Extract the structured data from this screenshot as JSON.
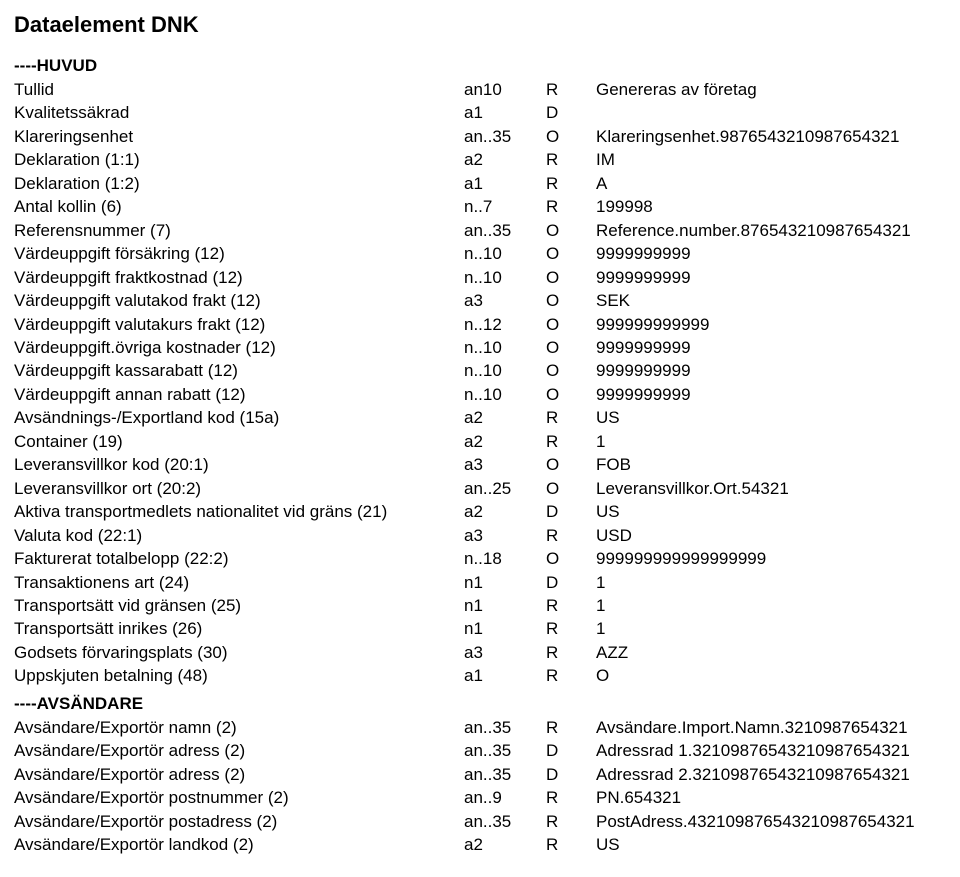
{
  "title": "Dataelement DNK",
  "sections": [
    {
      "heading": "----HUVUD",
      "rows": [
        {
          "label": "Tullid",
          "code": "an10",
          "flag": "R",
          "value": "Genereras av företag"
        },
        {
          "label": "Kvalitetssäkrad",
          "code": "a1",
          "flag": "D",
          "value": ""
        },
        {
          "label": "Klareringsenhet",
          "code": "an..35",
          "flag": "O",
          "value": "Klareringsenhet.9876543210987654321"
        },
        {
          "label": "Deklaration (1:1)",
          "code": "a2",
          "flag": "R",
          "value": "IM"
        },
        {
          "label": "Deklaration (1:2)",
          "code": "a1",
          "flag": "R",
          "value": "A"
        },
        {
          "label": "Antal kollin (6)",
          "code": "n..7",
          "flag": "R",
          "value": "199998"
        },
        {
          "label": "Referensnummer (7)",
          "code": "an..35",
          "flag": "O",
          "value": "Reference.number.876543210987654321"
        },
        {
          "label": "Värdeuppgift försäkring (12)",
          "code": "n..10",
          "flag": "O",
          "value": "9999999999"
        },
        {
          "label": "Värdeuppgift fraktkostnad (12)",
          "code": "n..10",
          "flag": "O",
          "value": "9999999999"
        },
        {
          "label": "Värdeuppgift valutakod frakt (12)",
          "code": "a3",
          "flag": "O",
          "value": "SEK"
        },
        {
          "label": "Värdeuppgift valutakurs frakt (12)",
          "code": "n..12",
          "flag": "O",
          "value": "999999999999"
        },
        {
          "label": "Värdeuppgift.övriga kostnader (12)",
          "code": "n..10",
          "flag": "O",
          "value": "9999999999"
        },
        {
          "label": "Värdeuppgift kassarabatt (12)",
          "code": "n..10",
          "flag": "O",
          "value": "9999999999"
        },
        {
          "label": "Värdeuppgift annan rabatt (12)",
          "code": "n..10",
          "flag": "O",
          "value": "9999999999"
        },
        {
          "label": "Avsändnings-/Exportland kod (15a)",
          "code": "a2",
          "flag": "R",
          "value": "US"
        },
        {
          "label": "Container (19)",
          "code": "a2",
          "flag": "R",
          "value": "1"
        },
        {
          "label": "Leveransvillkor kod (20:1)",
          "code": "a3",
          "flag": "O",
          "value": "FOB"
        },
        {
          "label": "Leveransvillkor ort (20:2)",
          "code": "an..25",
          "flag": "O",
          "value": "Leveransvillkor.Ort.54321"
        },
        {
          "label": "Aktiva transportmedlets nationalitet vid gräns (21)",
          "code": "a2",
          "flag": "D",
          "value": "US"
        },
        {
          "label": "Valuta kod (22:1)",
          "code": "a3",
          "flag": "R",
          "value": "USD"
        },
        {
          "label": "Fakturerat totalbelopp (22:2)",
          "code": "n..18",
          "flag": "O",
          "value": "999999999999999999"
        },
        {
          "label": "Transaktionens art (24)",
          "code": "n1",
          "flag": "D",
          "value": "1"
        },
        {
          "label": "Transportsätt vid gränsen (25)",
          "code": "n1",
          "flag": "R",
          "value": "1"
        },
        {
          "label": "Transportsätt inrikes (26)",
          "code": "n1",
          "flag": "R",
          "value": "1"
        },
        {
          "label": "Godsets förvaringsplats (30)",
          "code": "a3",
          "flag": "R",
          "value": "AZZ"
        },
        {
          "label": "Uppskjuten betalning (48)",
          "code": "a1",
          "flag": "R",
          "value": "O"
        }
      ]
    },
    {
      "heading": "----AVSÄNDARE",
      "rows": [
        {
          "label": "Avsändare/Exportör namn (2)",
          "code": "an..35",
          "flag": "R",
          "value": "Avsändare.Import.Namn.3210987654321"
        },
        {
          "label": "Avsändare/Exportör adress (2)",
          "code": "an..35",
          "flag": "D",
          "value": "Adressrad 1.32109876543210987654321"
        },
        {
          "label": "Avsändare/Exportör adress (2)",
          "code": "an..35",
          "flag": "D",
          "value": "Adressrad 2.32109876543210987654321"
        },
        {
          "label": "Avsändare/Exportör postnummer (2)",
          "code": "an..9",
          "flag": "R",
          "value": "PN.654321"
        },
        {
          "label": "Avsändare/Exportör postadress (2)",
          "code": "an..35",
          "flag": "R",
          "value": "PostAdress.432109876543210987654321"
        },
        {
          "label": "Avsändare/Exportör landkod (2)",
          "code": "a2",
          "flag": "R",
          "value": "US"
        }
      ]
    }
  ]
}
